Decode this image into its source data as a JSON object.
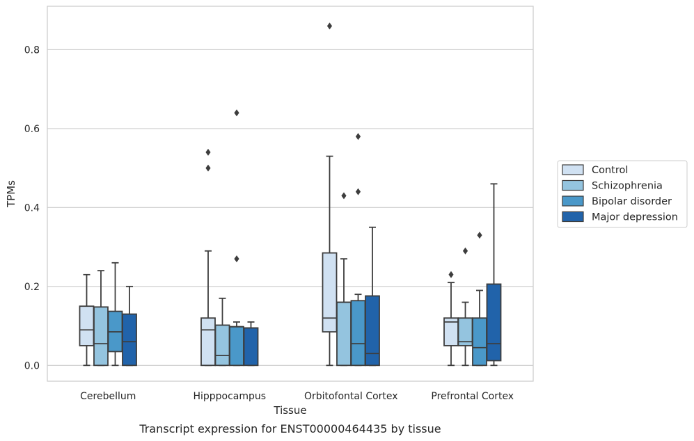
{
  "chart_data": {
    "type": "box",
    "title": "Transcript expression for ENST00000464435 by tissue",
    "xlabel": "Tissue",
    "ylabel": "TPMs",
    "ylim": [
      -0.04,
      0.91
    ],
    "yticks": [
      "0.0",
      "0.2",
      "0.4",
      "0.6",
      "0.8"
    ],
    "grid": "horizontal",
    "legend_position": "right",
    "categories": [
      "Cerebellum",
      "Hipppocampus",
      "Orbitofontal Cortex",
      "Prefrontal Cortex"
    ],
    "series": [
      {
        "name": "Control",
        "color": "#d0e1f2",
        "boxes": [
          {
            "whisker_low": 0.0,
            "q1": 0.05,
            "median": 0.09,
            "q3": 0.15,
            "whisker_high": 0.23,
            "outliers": []
          },
          {
            "whisker_low": 0.0,
            "q1": 0.0,
            "median": 0.09,
            "q3": 0.12,
            "whisker_high": 0.29,
            "outliers": [
              0.5,
              0.54
            ]
          },
          {
            "whisker_low": 0.0,
            "q1": 0.085,
            "median": 0.12,
            "q3": 0.285,
            "whisker_high": 0.53,
            "outliers": [
              0.86
            ]
          },
          {
            "whisker_low": 0.0,
            "q1": 0.05,
            "median": 0.11,
            "q3": 0.12,
            "whisker_high": 0.21,
            "outliers": [
              0.23
            ]
          }
        ]
      },
      {
        "name": "Schizophrenia",
        "color": "#94c4df",
        "boxes": [
          {
            "whisker_low": 0.0,
            "q1": 0.0,
            "median": 0.055,
            "q3": 0.148,
            "whisker_high": 0.24,
            "outliers": []
          },
          {
            "whisker_low": 0.0,
            "q1": 0.0,
            "median": 0.025,
            "q3": 0.102,
            "whisker_high": 0.17,
            "outliers": []
          },
          {
            "whisker_low": 0.0,
            "q1": 0.0,
            "median": 0.16,
            "q3": 0.16,
            "whisker_high": 0.27,
            "outliers": [
              0.43
            ]
          },
          {
            "whisker_low": 0.0,
            "q1": 0.05,
            "median": 0.06,
            "q3": 0.12,
            "whisker_high": 0.16,
            "outliers": [
              0.29
            ]
          }
        ]
      },
      {
        "name": "Bipolar disorder",
        "color": "#4a98c9",
        "boxes": [
          {
            "whisker_low": 0.0,
            "q1": 0.035,
            "median": 0.085,
            "q3": 0.137,
            "whisker_high": 0.26,
            "outliers": []
          },
          {
            "whisker_low": 0.0,
            "q1": 0.0,
            "median": 0.098,
            "q3": 0.098,
            "whisker_high": 0.11,
            "outliers": [
              0.27,
              0.64
            ]
          },
          {
            "whisker_low": 0.0,
            "q1": 0.0,
            "median": 0.055,
            "q3": 0.164,
            "whisker_high": 0.18,
            "outliers": [
              0.44,
              0.58
            ]
          },
          {
            "whisker_low": 0.0,
            "q1": 0.0,
            "median": 0.045,
            "q3": 0.12,
            "whisker_high": 0.19,
            "outliers": [
              0.33
            ]
          }
        ]
      },
      {
        "name": "Major depression",
        "color": "#2163aa",
        "boxes": [
          {
            "whisker_low": 0.0,
            "q1": 0.0,
            "median": 0.06,
            "q3": 0.13,
            "whisker_high": 0.2,
            "outliers": []
          },
          {
            "whisker_low": 0.0,
            "q1": 0.0,
            "median": 0.095,
            "q3": 0.095,
            "whisker_high": 0.11,
            "outliers": []
          },
          {
            "whisker_low": 0.0,
            "q1": 0.0,
            "median": 0.03,
            "q3": 0.176,
            "whisker_high": 0.35,
            "outliers": []
          },
          {
            "whisker_low": 0.0,
            "q1": 0.012,
            "median": 0.055,
            "q3": 0.206,
            "whisker_high": 0.46,
            "outliers": []
          }
        ]
      }
    ]
  }
}
